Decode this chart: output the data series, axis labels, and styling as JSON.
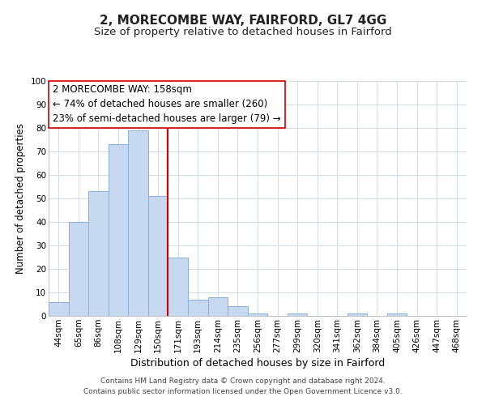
{
  "title": "2, MORECOMBE WAY, FAIRFORD, GL7 4GG",
  "subtitle": "Size of property relative to detached houses in Fairford",
  "xlabel": "Distribution of detached houses by size in Fairford",
  "ylabel": "Number of detached properties",
  "bar_labels": [
    "44sqm",
    "65sqm",
    "86sqm",
    "108sqm",
    "129sqm",
    "150sqm",
    "171sqm",
    "193sqm",
    "214sqm",
    "235sqm",
    "256sqm",
    "277sqm",
    "299sqm",
    "320sqm",
    "341sqm",
    "362sqm",
    "384sqm",
    "405sqm",
    "426sqm",
    "447sqm",
    "468sqm"
  ],
  "bar_values": [
    6,
    40,
    53,
    73,
    79,
    51,
    25,
    7,
    8,
    4,
    1,
    0,
    1,
    0,
    0,
    1,
    0,
    1,
    0,
    0,
    0
  ],
  "bar_color": "#c6d9f0",
  "bar_edge_color": "#8ab0d8",
  "vline_x": 5.5,
  "vline_color": "#cc0000",
  "ylim": [
    0,
    100
  ],
  "yticks": [
    0,
    10,
    20,
    30,
    40,
    50,
    60,
    70,
    80,
    90,
    100
  ],
  "annotation_title": "2 MORECOMBE WAY: 158sqm",
  "annotation_line1": "← 74% of detached houses are smaller (260)",
  "annotation_line2": "23% of semi-detached houses are larger (79) →",
  "annotation_box_color": "#ffffff",
  "annotation_box_edge": "#cc0000",
  "footer_line1": "Contains HM Land Registry data © Crown copyright and database right 2024.",
  "footer_line2": "Contains public sector information licensed under the Open Government Licence v3.0.",
  "title_fontsize": 11,
  "subtitle_fontsize": 9.5,
  "xlabel_fontsize": 9,
  "ylabel_fontsize": 8.5,
  "tick_fontsize": 7.5,
  "annotation_fontsize": 8.5,
  "footer_fontsize": 6.5,
  "grid_color": "#d0dde8"
}
